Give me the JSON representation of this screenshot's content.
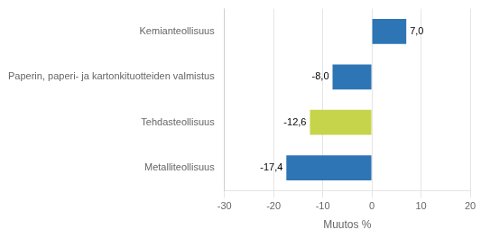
{
  "chart_data": {
    "type": "bar",
    "orientation": "horizontal",
    "categories": [
      "Metalliteollisuus",
      "Tehdasteollisuus",
      "Paperin, paperi- ja kartonkituotteiden valmistus",
      "Kemianteollisuus"
    ],
    "values": [
      -17.4,
      -12.6,
      -8.0,
      7.0
    ],
    "value_labels": [
      "-17,4",
      "-12,6",
      "-8,0",
      "7,0"
    ],
    "colors": [
      "#2e75b6",
      "#c5d44a",
      "#2e75b6",
      "#2e75b6"
    ],
    "data_labels": true,
    "xlabel": "Muutos %",
    "xlim": [
      -30,
      20
    ],
    "xticks": [
      -30,
      -20,
      -10,
      0,
      10,
      20
    ],
    "grid": true
  }
}
